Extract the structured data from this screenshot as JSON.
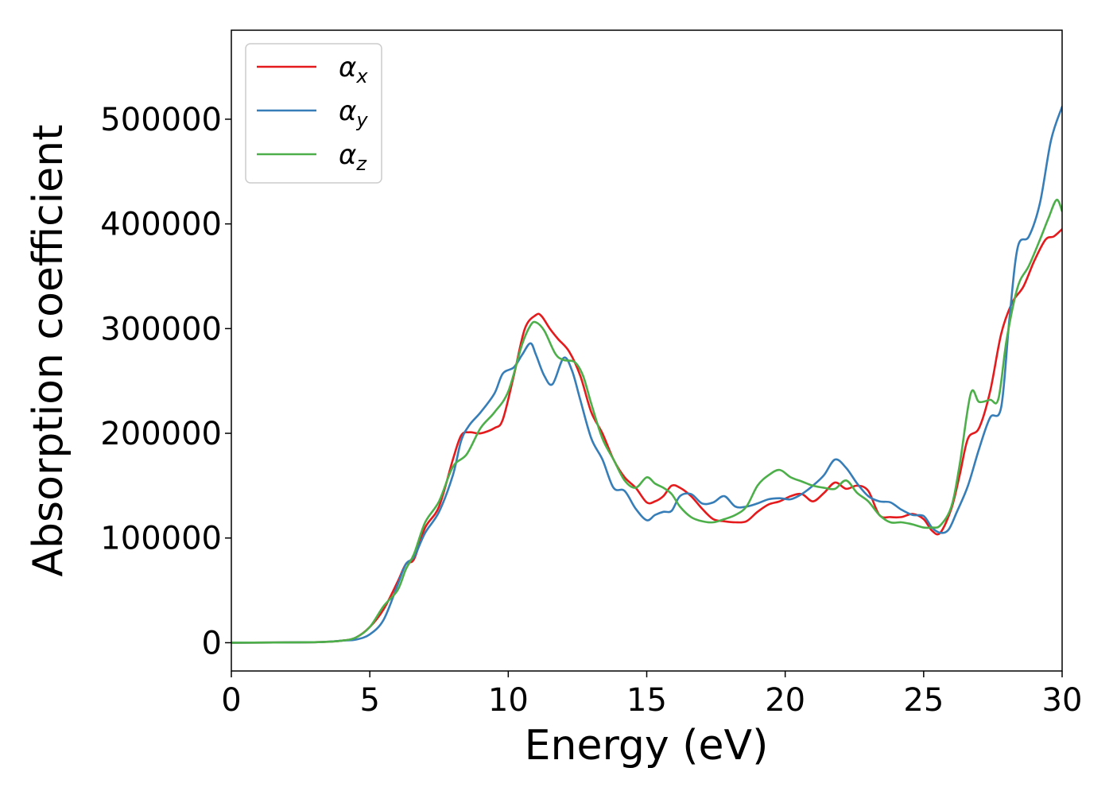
{
  "chart_data": {
    "type": "line",
    "title": "",
    "xlabel": "Energy (eV)",
    "ylabel": "Absorption coefficient",
    "xlim": [
      0,
      30
    ],
    "ylim": [
      -27000,
      585000
    ],
    "xticks": [
      0,
      5,
      10,
      15,
      20,
      25,
      30
    ],
    "yticks": [
      0,
      100000,
      200000,
      300000,
      400000,
      500000
    ],
    "grid": false,
    "legend_position": "top-left",
    "series": [
      {
        "name": "αx",
        "symbol": "α",
        "subscript": "x",
        "color": "#e41a1c",
        "x": [
          0,
          3,
          4,
          4.5,
          5,
          5.5,
          6,
          6.3,
          6.6,
          7,
          7.5,
          8,
          8.3,
          8.6,
          9,
          9.5,
          9.8,
          10.2,
          10.6,
          11,
          11.2,
          11.5,
          11.8,
          12.2,
          12.6,
          13,
          13.4,
          13.8,
          14.2,
          14.6,
          15,
          15.3,
          15.6,
          15.9,
          16.2,
          16.6,
          17,
          17.4,
          17.8,
          18.2,
          18.6,
          19,
          19.4,
          19.8,
          20.2,
          20.6,
          21,
          21.4,
          21.8,
          22.2,
          22.6,
          23,
          23.4,
          23.8,
          24.2,
          24.6,
          25,
          25.3,
          25.6,
          26,
          26.3,
          26.6,
          27,
          27.4,
          27.8,
          28.2,
          28.6,
          29,
          29.4,
          29.7,
          30
        ],
        "y": [
          0,
          500,
          2000,
          5000,
          15000,
          32000,
          58000,
          75000,
          80000,
          110000,
          130000,
          175000,
          198000,
          201000,
          200000,
          205000,
          213000,
          255000,
          300000,
          313000,
          312000,
          300000,
          290000,
          278000,
          255000,
          220000,
          200000,
          175000,
          158000,
          148000,
          134000,
          135000,
          140000,
          150000,
          148000,
          140000,
          128000,
          118000,
          116000,
          115000,
          116000,
          125000,
          132000,
          135000,
          140000,
          142000,
          135000,
          143000,
          153000,
          147000,
          150000,
          145000,
          122000,
          120000,
          120000,
          123000,
          118000,
          107000,
          105000,
          128000,
          160000,
          195000,
          205000,
          240000,
          295000,
          325000,
          340000,
          365000,
          385000,
          388000,
          395000
        ]
      },
      {
        "name": "αy",
        "symbol": "α",
        "subscript": "y",
        "color": "#377eb8",
        "x": [
          0,
          3,
          4,
          4.5,
          5,
          5.5,
          6,
          6.3,
          6.6,
          7,
          7.5,
          8,
          8.3,
          8.6,
          9,
          9.5,
          9.8,
          10.2,
          10.5,
          10.8,
          11,
          11.3,
          11.6,
          12,
          12.3,
          12.6,
          13,
          13.4,
          13.8,
          14.2,
          14.6,
          15,
          15.3,
          15.6,
          15.9,
          16.2,
          16.6,
          17,
          17.4,
          17.8,
          18.2,
          18.6,
          19,
          19.4,
          19.8,
          20.2,
          20.6,
          21,
          21.4,
          21.8,
          22.2,
          22.6,
          23,
          23.4,
          23.8,
          24.2,
          24.6,
          25,
          25.3,
          25.6,
          25.9,
          26.2,
          26.6,
          27,
          27.4,
          27.8,
          28.1,
          28.4,
          28.8,
          29.2,
          29.6,
          30
        ],
        "y": [
          0,
          500,
          2000,
          3000,
          8000,
          22000,
          55000,
          75000,
          82000,
          105000,
          125000,
          160000,
          193000,
          208000,
          220000,
          238000,
          257000,
          263000,
          275000,
          286000,
          275000,
          255000,
          247000,
          272000,
          260000,
          232000,
          195000,
          175000,
          148000,
          145000,
          128000,
          117000,
          122000,
          125000,
          126000,
          140000,
          142000,
          133000,
          134000,
          140000,
          130000,
          130000,
          133000,
          137000,
          138000,
          137000,
          142000,
          150000,
          160000,
          175000,
          167000,
          152000,
          140000,
          135000,
          134000,
          127000,
          122000,
          121000,
          110000,
          105000,
          108000,
          125000,
          150000,
          185000,
          215000,
          225000,
          310000,
          378000,
          388000,
          420000,
          480000,
          512000
        ]
      },
      {
        "name": "αz",
        "symbol": "α",
        "subscript": "z",
        "color": "#4daf4a",
        "x": [
          0,
          3,
          4,
          4.5,
          5,
          5.5,
          6,
          6.3,
          6.6,
          7,
          7.5,
          8,
          8.5,
          9,
          9.5,
          10,
          10.5,
          10.8,
          11,
          11.3,
          11.7,
          12,
          12.4,
          12.7,
          13,
          13.4,
          13.8,
          14.2,
          14.6,
          15,
          15.3,
          15.6,
          15.9,
          16.2,
          16.6,
          17,
          17.4,
          17.8,
          18.2,
          18.6,
          19,
          19.4,
          19.8,
          20.2,
          20.6,
          21,
          21.4,
          21.8,
          22.2,
          22.6,
          23,
          23.4,
          23.8,
          24.2,
          24.6,
          25,
          25.3,
          25.6,
          26,
          26.3,
          26.7,
          27,
          27.4,
          27.7,
          28,
          28.4,
          28.8,
          29.2,
          29.5,
          29.8,
          30
        ],
        "y": [
          0,
          500,
          2000,
          5000,
          15000,
          35000,
          50000,
          70000,
          85000,
          115000,
          135000,
          168000,
          180000,
          205000,
          220000,
          240000,
          285000,
          303000,
          306000,
          298000,
          276000,
          270000,
          268000,
          255000,
          228000,
          195000,
          175000,
          155000,
          148000,
          158000,
          152000,
          148000,
          142000,
          130000,
          120000,
          116000,
          115000,
          118000,
          122000,
          130000,
          150000,
          160000,
          165000,
          158000,
          154000,
          150000,
          148000,
          147000,
          155000,
          143000,
          135000,
          122000,
          115000,
          115000,
          113000,
          110000,
          110000,
          112000,
          130000,
          170000,
          238000,
          230000,
          232000,
          233000,
          290000,
          340000,
          360000,
          385000,
          405000,
          423000,
          412000
        ]
      }
    ]
  }
}
